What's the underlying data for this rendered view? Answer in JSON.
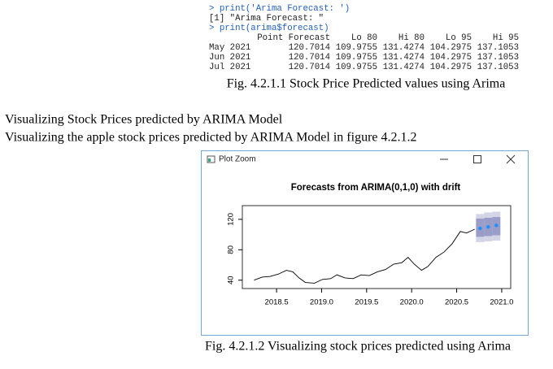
{
  "console": {
    "lines": [
      "> print('Arima Forecast: ')",
      "[1] \"Arima Forecast: \"",
      "> print(arima$forecast)"
    ],
    "header": [
      "Point Forecast",
      "Lo 80",
      "Hi 80",
      "Lo 95",
      "Hi 95"
    ],
    "rows": [
      [
        "May 2021",
        120.7014,
        109.9755,
        131.4274,
        104.2975,
        137.1053
      ],
      [
        "Jun 2021",
        120.7014,
        109.9755,
        131.4274,
        104.2975,
        137.1053
      ],
      [
        "Jul 2021",
        120.7014,
        109.9755,
        131.4274,
        104.2975,
        137.1053
      ]
    ]
  },
  "captions": [
    "Fig. 4.2.1.1 Stock Price Predicted values using Arima",
    "Fig. 4.2.1.2 Visualizing stock prices predicted using Arima"
  ],
  "paragraphs": [
    "Visualizing Stock Prices predicted by ARIMA Model",
    "Visualizing the apple stock prices predicted by ARIMA Model in figure 4.2.1.2"
  ],
  "window": {
    "title": "Plot Zoom"
  },
  "chart_data": {
    "type": "line",
    "title": "Forecasts from ARIMA(0,1,0) with drift",
    "x": [
      2018.25,
      2018.34,
      2018.43,
      2018.52,
      2018.61,
      2018.68,
      2018.75,
      2018.82,
      2018.92,
      2019.01,
      2019.1,
      2019.17,
      2019.26,
      2019.35,
      2019.44,
      2019.53,
      2019.62,
      2019.71,
      2019.8,
      2019.89,
      2019.96,
      2020.03,
      2020.11,
      2020.18,
      2020.27,
      2020.36,
      2020.45,
      2020.54,
      2020.61,
      2020.7
    ],
    "values": [
      40,
      44,
      45,
      48,
      53,
      51,
      43,
      37,
      36,
      41,
      42,
      47,
      43,
      42,
      47,
      46,
      51,
      54,
      61,
      63,
      70,
      61,
      53,
      58,
      70,
      77,
      88,
      104,
      102,
      107
    ],
    "color": "#000000",
    "forecast": {
      "x": [
        2020.76,
        2020.85,
        2020.94
      ],
      "values": [
        108,
        110,
        112
      ],
      "lo80": [
        97,
        98,
        99
      ],
      "hi80": [
        121,
        122,
        123
      ],
      "lo95": [
        90,
        91,
        92
      ],
      "hi95": [
        127,
        129,
        130
      ],
      "color": "#1e90ff",
      "band80_color": "#9b9dc9",
      "band95_color": "#d3d4e6"
    },
    "xlim": [
      2018.12,
      2021.1
    ],
    "ylim": [
      29,
      138
    ],
    "xticks": [
      2018.5,
      {
        "value": 2019,
        "label": "2019.0"
      },
      2019.5,
      {
        "value": 2020,
        "label": "2020.0"
      },
      2020.5,
      {
        "value": 2021,
        "label": "2021.0"
      }
    ],
    "yticks": [
      40,
      80,
      120
    ]
  }
}
